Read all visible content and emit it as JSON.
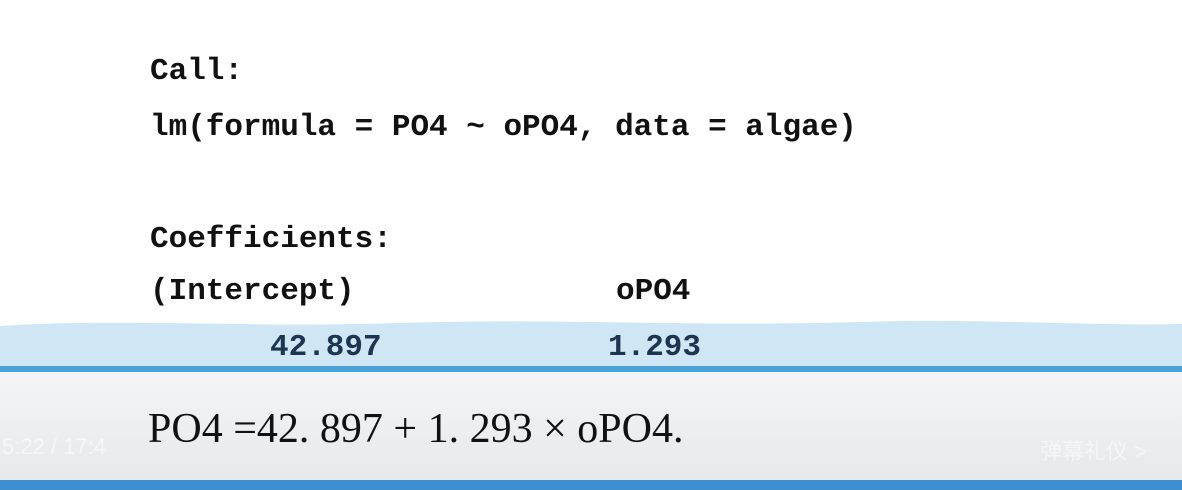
{
  "document": {
    "call_label": "Call:",
    "call": "lm(formula = PO4 ~ oPO4, data = algae)",
    "coefficients_label": "Coefficients:",
    "table": {
      "headers": [
        "(Intercept)",
        "oPO4"
      ],
      "values": [
        "42.897",
        "1.293"
      ]
    },
    "equation": "PO4 =42. 897 + 1. 293 × oPO4."
  },
  "player": {
    "time": "5:22 / 17:4",
    "danmaku": "弹幕礼仪 >"
  }
}
